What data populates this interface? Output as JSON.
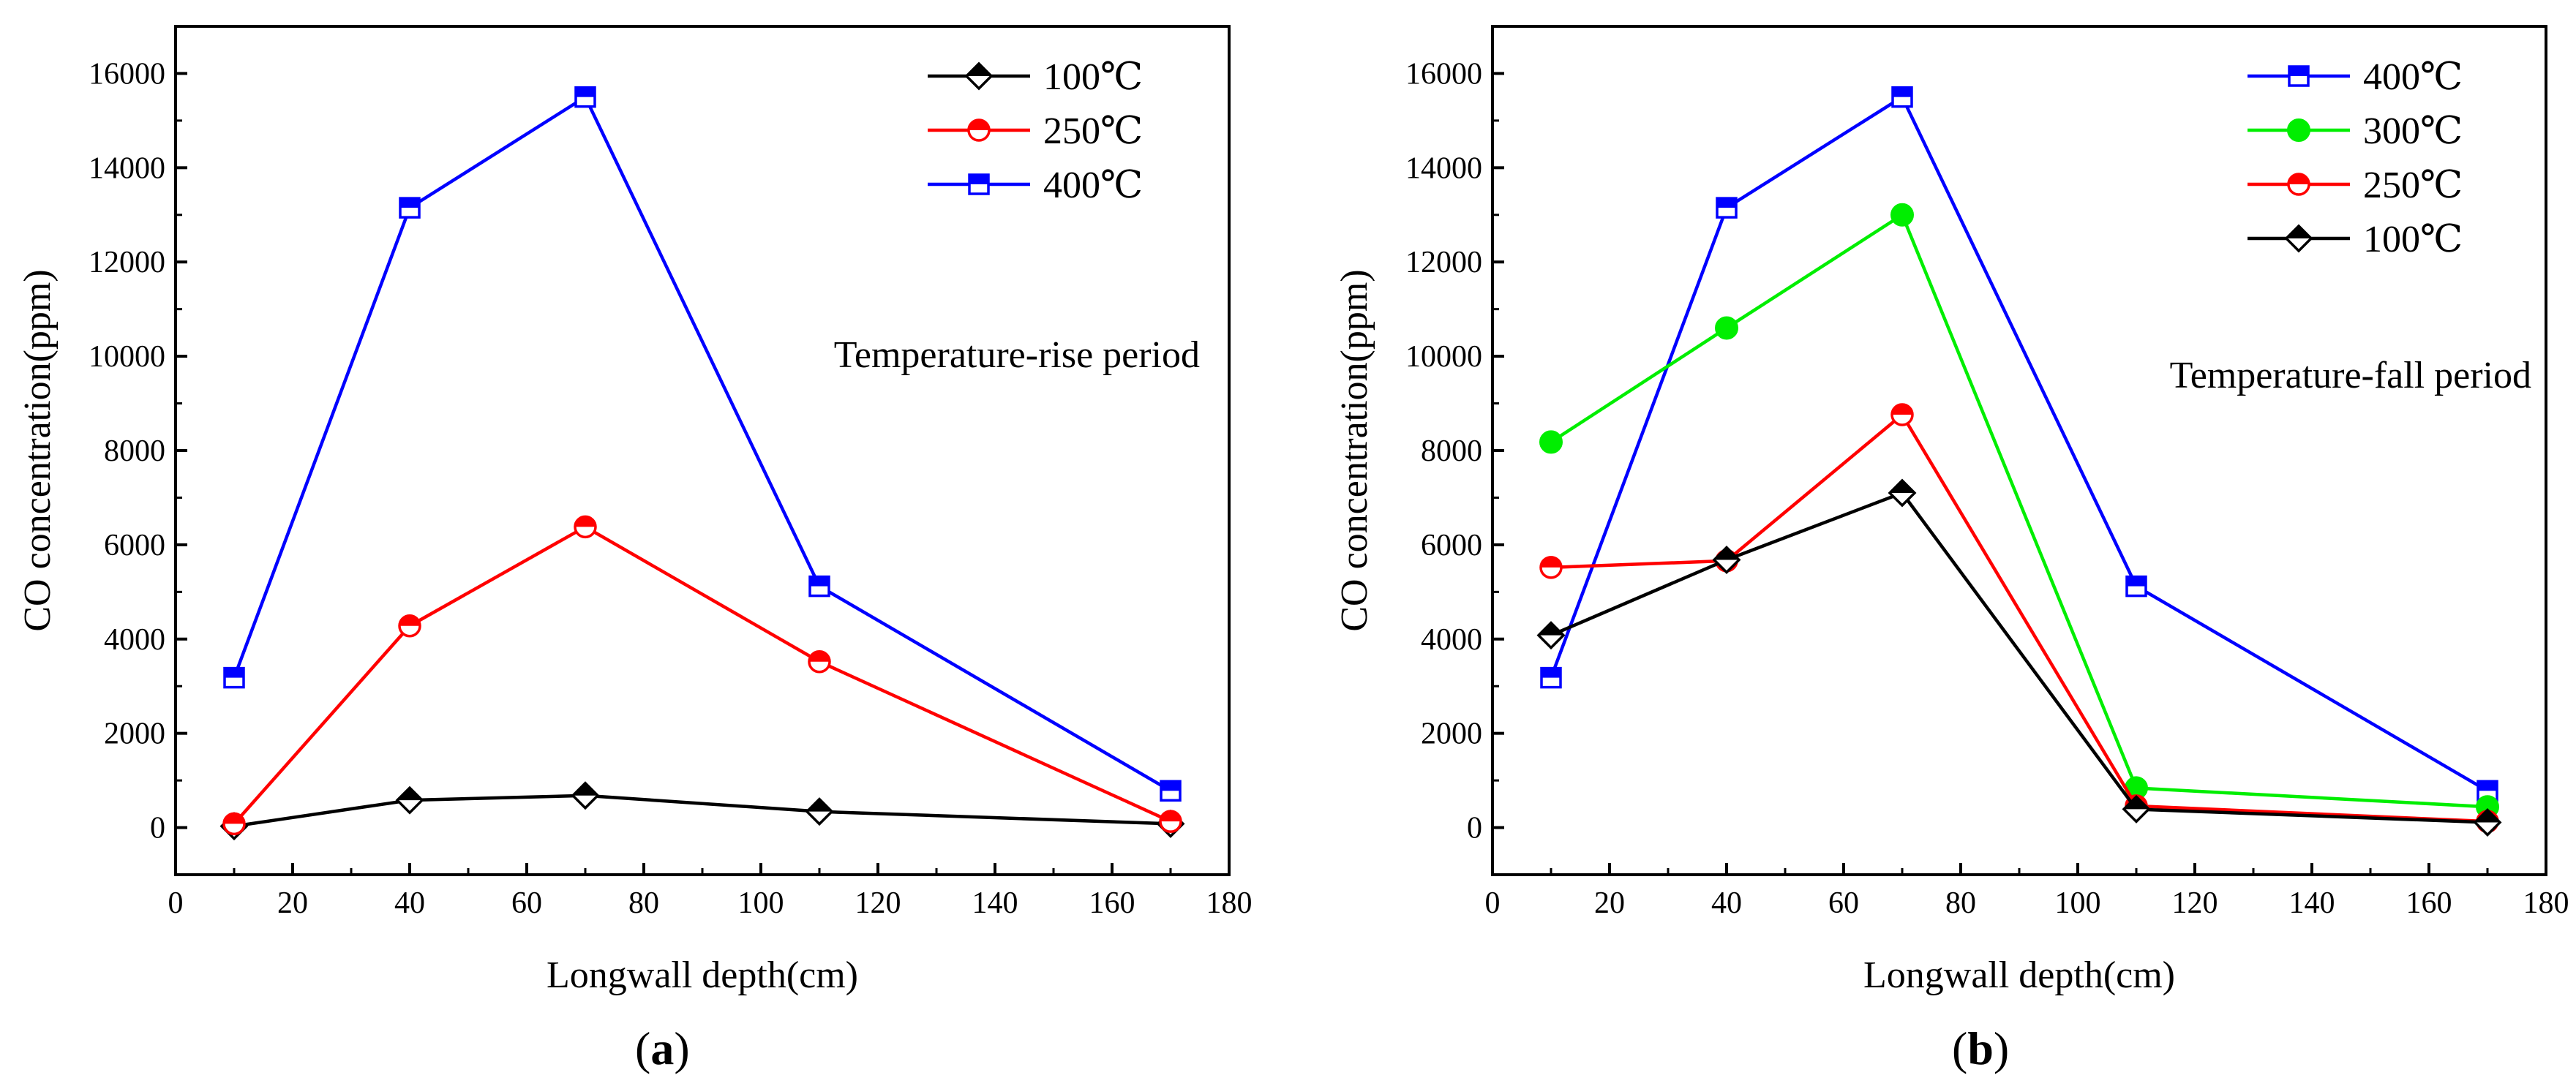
{
  "chart_data": [
    {
      "type": "line",
      "panel_label": "(a)",
      "panel_letter": "a",
      "xlabel": "Longwall depth(cm)",
      "ylabel": "CO concentration(ppm)",
      "annotation": "Temperature-rise period",
      "xlim": [
        0,
        180
      ],
      "ylim": [
        -1000,
        17000
      ],
      "xticks": [
        0,
        20,
        40,
        60,
        80,
        100,
        120,
        140,
        160,
        180
      ],
      "yticks": [
        0,
        2000,
        4000,
        6000,
        8000,
        10000,
        12000,
        14000,
        16000
      ],
      "x": [
        10,
        40,
        70,
        110,
        170
      ],
      "legend_position": "top-right",
      "series": [
        {
          "name": "100℃",
          "color": "#000000",
          "marker": "diamond",
          "values": [
            30,
            580,
            680,
            340,
            80
          ]
        },
        {
          "name": "250℃",
          "color": "#ff0000",
          "marker": "circle",
          "values": [
            80,
            4280,
            6380,
            3520,
            130
          ]
        },
        {
          "name": "400℃",
          "color": "#0000ff",
          "marker": "square",
          "values": [
            3180,
            13150,
            15500,
            5120,
            780
          ]
        }
      ]
    },
    {
      "type": "line",
      "panel_label": "(b)",
      "panel_letter": "b",
      "xlabel": "Longwall depth(cm)",
      "ylabel": "CO concentration(ppm)",
      "annotation": "Temperature-fall period",
      "xlim": [
        0,
        180
      ],
      "ylim": [
        -1000,
        17000
      ],
      "xticks": [
        0,
        20,
        40,
        60,
        80,
        100,
        120,
        140,
        160,
        180
      ],
      "yticks": [
        0,
        2000,
        4000,
        6000,
        8000,
        10000,
        12000,
        14000,
        16000
      ],
      "x": [
        10,
        40,
        70,
        110,
        170
      ],
      "legend_position": "top-left",
      "series": [
        {
          "name": "400℃",
          "color": "#0000ff",
          "marker": "square",
          "values": [
            3180,
            13150,
            15500,
            5120,
            780
          ]
        },
        {
          "name": "300℃",
          "color": "#00ee00",
          "marker": "circle-filled",
          "values": [
            8180,
            10600,
            13000,
            840,
            440
          ]
        },
        {
          "name": "250℃",
          "color": "#ff0000",
          "marker": "circle",
          "values": [
            5520,
            5660,
            8760,
            460,
            130
          ]
        },
        {
          "name": "100℃",
          "color": "#000000",
          "marker": "diamond",
          "values": [
            4080,
            5680,
            7100,
            390,
            110
          ]
        }
      ]
    }
  ]
}
